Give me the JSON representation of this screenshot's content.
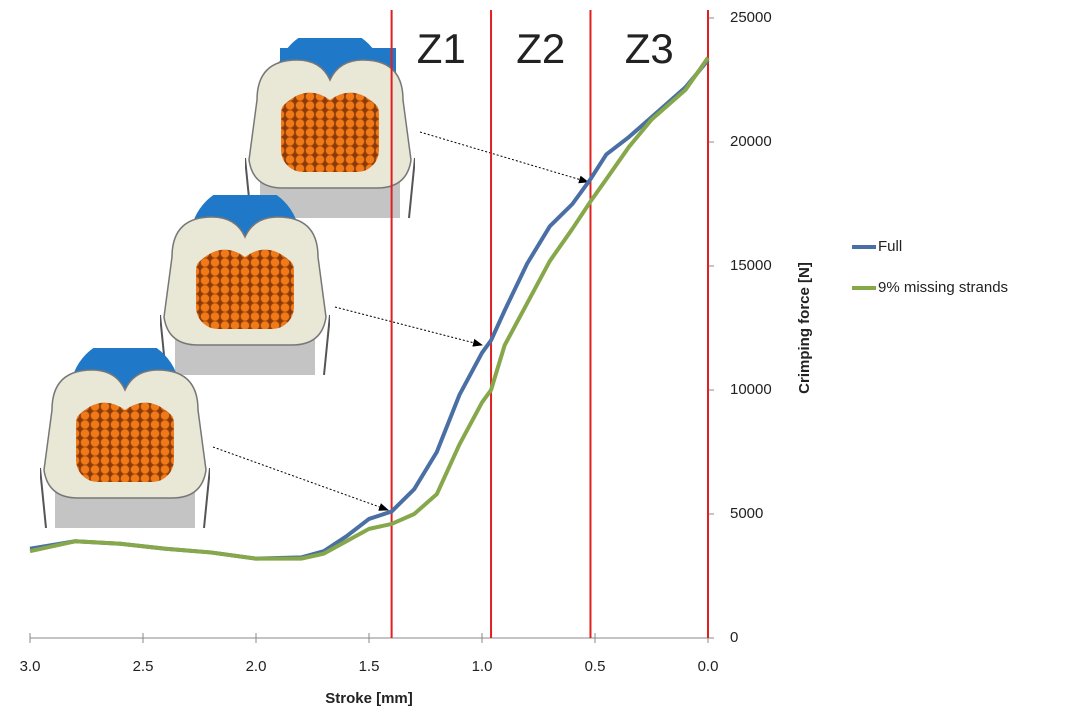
{
  "chart_data": {
    "type": "line",
    "x_label": "Stroke [mm]",
    "y_label": "Crimping force [N]",
    "x": [
      3.0,
      2.8,
      2.6,
      2.4,
      2.2,
      2.0,
      1.8,
      1.7,
      1.6,
      1.5,
      1.4,
      1.3,
      1.2,
      1.1,
      1.0,
      0.96,
      0.9,
      0.8,
      0.7,
      0.6,
      0.52,
      0.45,
      0.35,
      0.25,
      0.1,
      0.0
    ],
    "series": [
      {
        "name": "Full",
        "color": "#4a6fa5",
        "values": [
          3600,
          3900,
          3800,
          3600,
          3450,
          3200,
          3250,
          3500,
          4100,
          4800,
          5100,
          6000,
          7500,
          9800,
          11500,
          12000,
          13200,
          15100,
          16600,
          17500,
          18500,
          19500,
          20200,
          21000,
          22200,
          23300
        ]
      },
      {
        "name": "9% missing strands",
        "color": "#86a84a",
        "values": [
          3500,
          3900,
          3800,
          3600,
          3450,
          3200,
          3200,
          3400,
          3900,
          4400,
          4600,
          5000,
          5800,
          7800,
          9500,
          10000,
          11800,
          13500,
          15200,
          16500,
          17600,
          18500,
          19800,
          20900,
          22100,
          23400
        ]
      }
    ],
    "xlim": [
      3.0,
      0.0
    ],
    "xticks": [
      {
        "value": 3,
        "label": "3.0"
      },
      2.5,
      {
        "value": 2,
        "label": "2.0"
      },
      1.5,
      {
        "value": 1,
        "label": "1.0"
      },
      0.5,
      {
        "value": 0,
        "label": "0.0"
      }
    ],
    "ylim": [
      0,
      25000
    ],
    "yticks": [
      0,
      5000,
      10000,
      15000,
      20000,
      25000
    ],
    "zone_lines": [
      1.4,
      0.96,
      0.52,
      0.0
    ],
    "zone_line_color": "#e02020",
    "zones": [
      {
        "label": "Z1",
        "from": 1.4,
        "to": 0.96
      },
      {
        "label": "Z2",
        "from": 0.96,
        "to": 0.52
      },
      {
        "label": "Z3",
        "from": 0.52,
        "to": 0.0
      }
    ],
    "legend": "right"
  }
}
